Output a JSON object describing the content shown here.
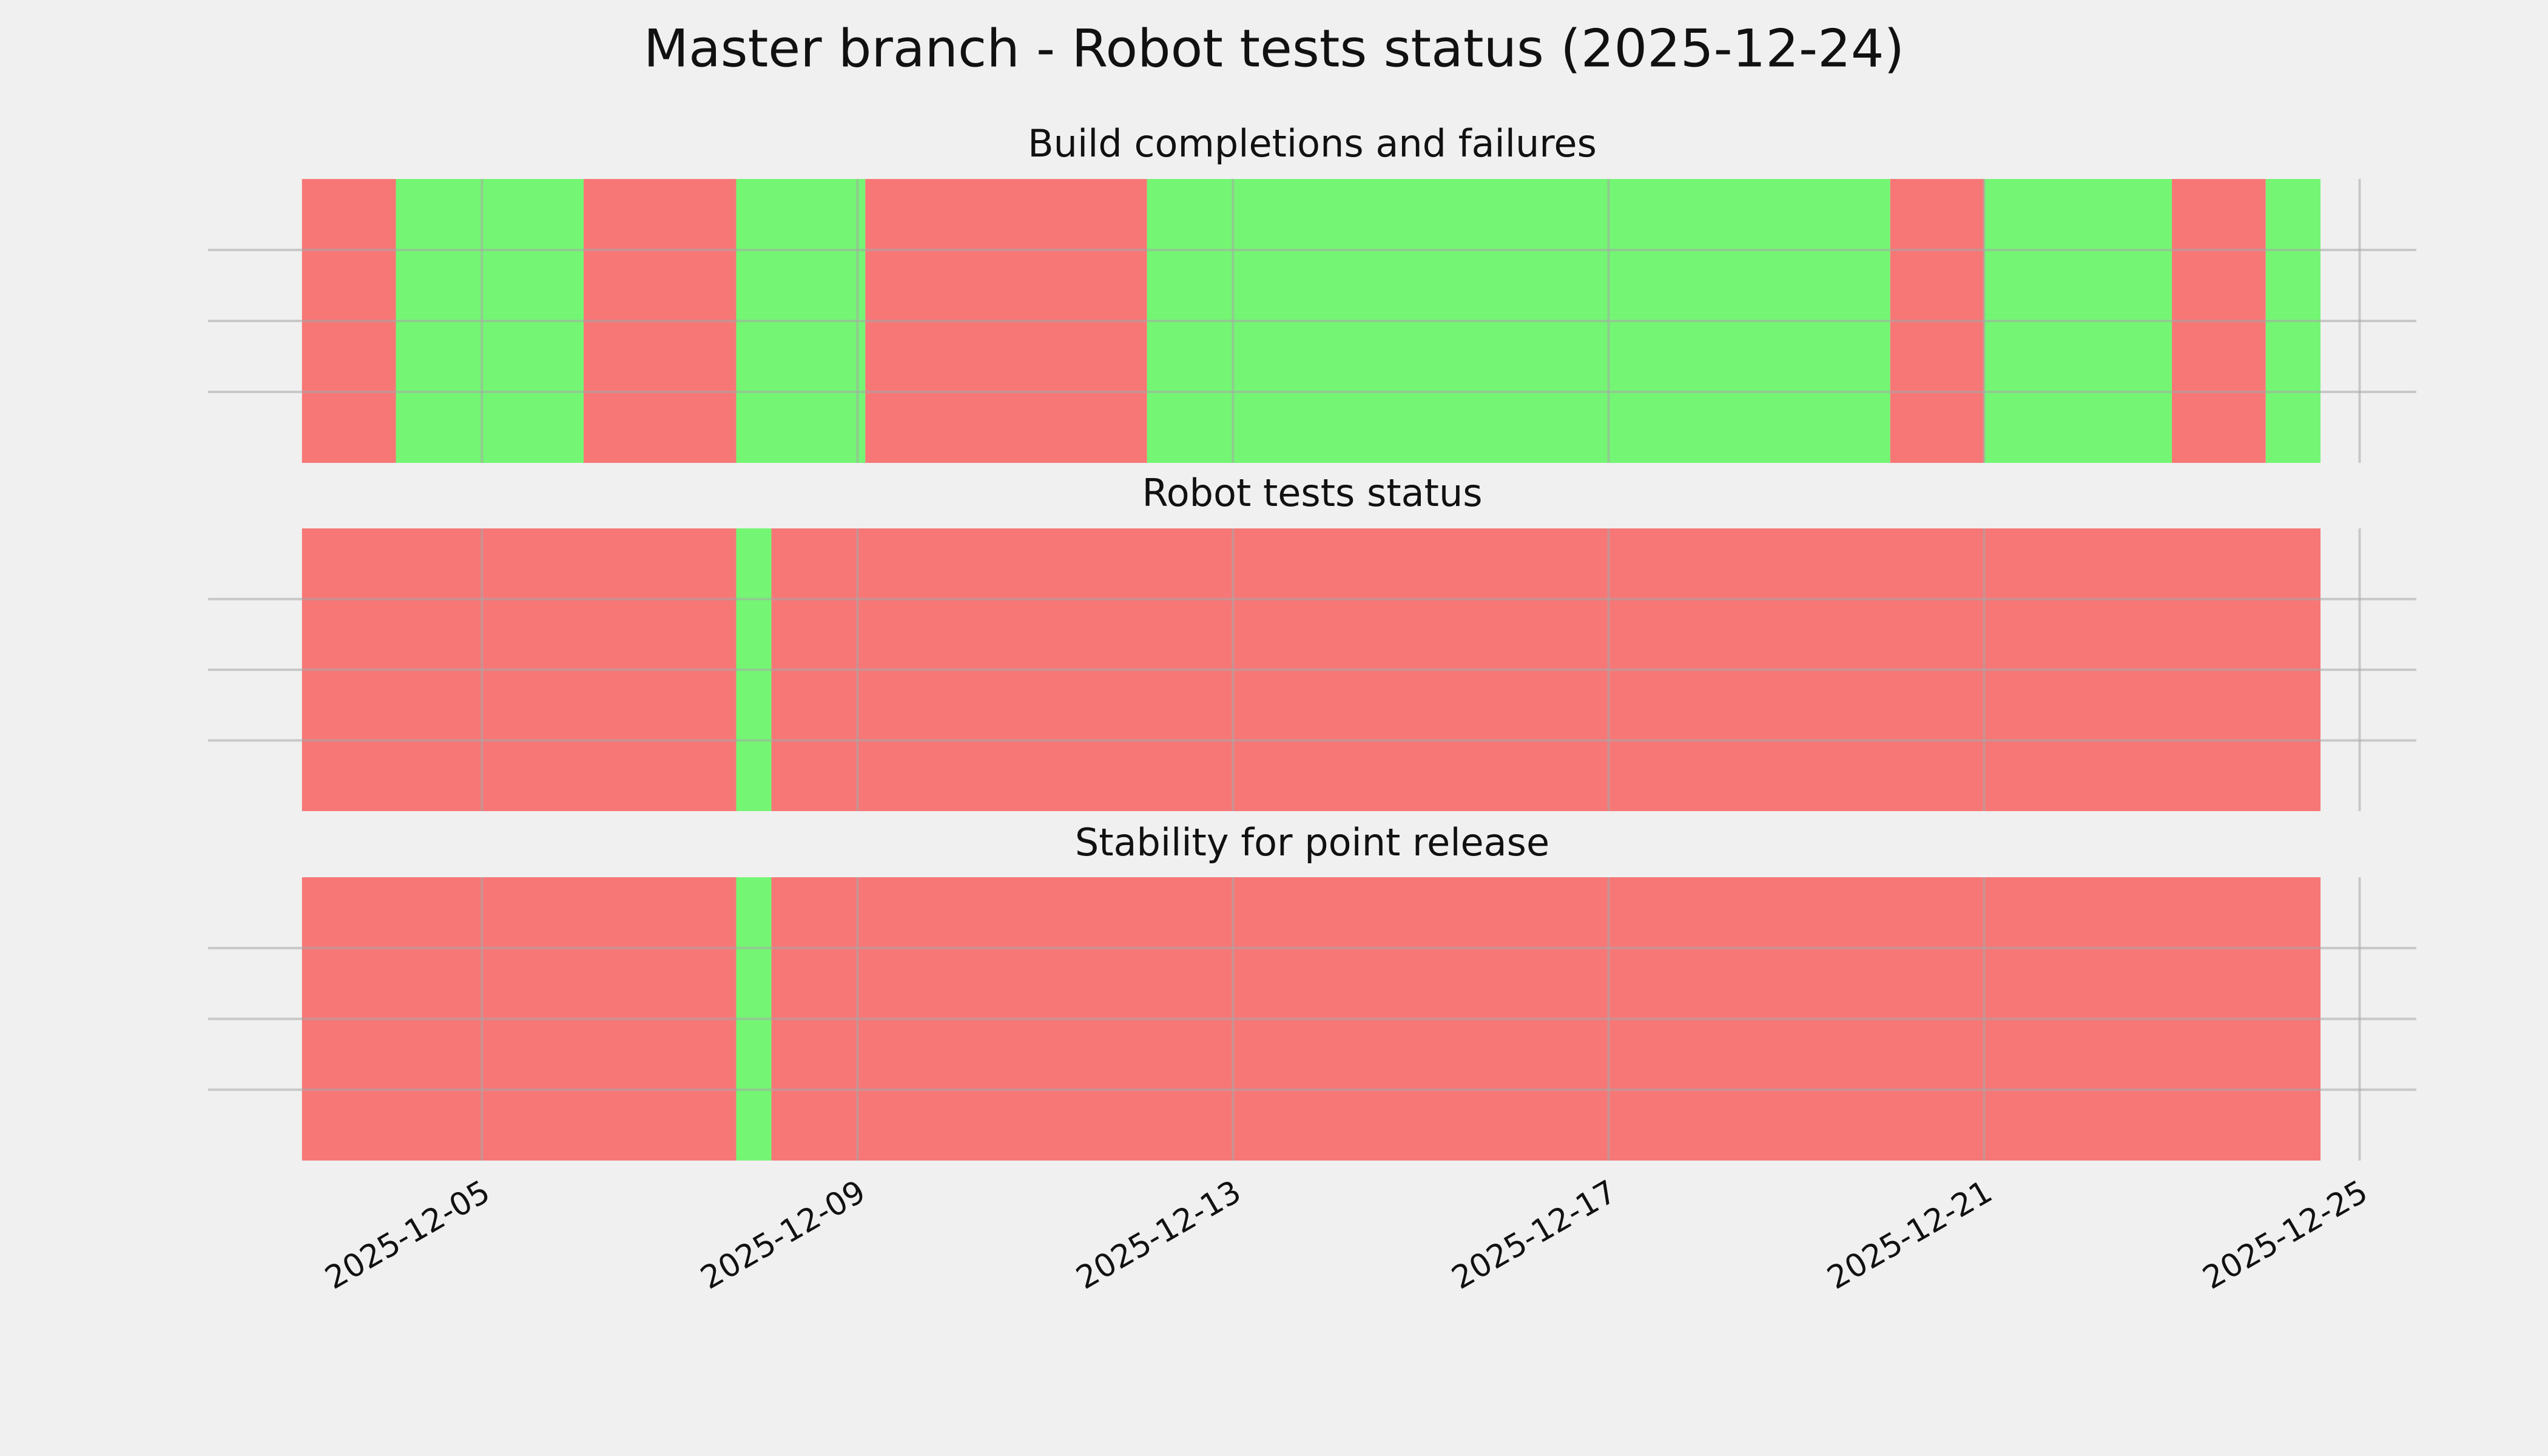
{
  "title": "Master branch - Robot tests status (2025-12-24)",
  "chart_data": [
    {
      "type": "timeline",
      "title": "Build completions and failures",
      "x": [
        "2025-12-03 02:00",
        "2025-12-04 02:00",
        "2025-12-06 02:00",
        "2025-12-07 17:00",
        "2025-12-09 02:00",
        "2025-12-12 02:00",
        "2025-12-20 00:00",
        "2025-12-21 00:00",
        "2025-12-23 00:00",
        "2025-12-24 00:00",
        "2025-12-24 14:00"
      ],
      "colors": [
        "#f77777",
        "#74f674",
        "#f77777",
        "#74f674",
        "#f77777",
        "#74f674",
        "#f77777",
        "#74f674",
        "#f77777",
        "#74f674"
      ],
      "xlim": [
        "2025-12-02 02:00",
        "2025-12-25 14:30"
      ],
      "xticks": [
        "2025-12-05",
        "2025-12-09",
        "2025-12-13",
        "2025-12-17",
        "2025-12-21",
        "2025-12-25"
      ],
      "grid": true,
      "show_xtick_labels": false
    },
    {
      "type": "timeline",
      "title": "Robot tests status",
      "x": [
        "2025-12-03 02:00",
        "2025-12-07 17:00",
        "2025-12-08 02:00",
        "2025-12-24 14:00"
      ],
      "colors": [
        "#f77777",
        "#74f674",
        "#f77777"
      ],
      "xlim": [
        "2025-12-02 02:00",
        "2025-12-25 14:30"
      ],
      "xticks": [
        "2025-12-05",
        "2025-12-09",
        "2025-12-13",
        "2025-12-17",
        "2025-12-21",
        "2025-12-25"
      ],
      "grid": true,
      "show_xtick_labels": false
    },
    {
      "type": "timeline",
      "title": "Stability for point release",
      "x": [
        "2025-12-03 02:00",
        "2025-12-07 17:00",
        "2025-12-08 02:00",
        "2025-12-24 14:00"
      ],
      "colors": [
        "#f77777",
        "#74f674",
        "#f77777"
      ],
      "xlim": [
        "2025-12-02 02:00",
        "2025-12-25 14:30"
      ],
      "xticks": [
        "2025-12-05",
        "2025-12-09",
        "2025-12-13",
        "2025-12-17",
        "2025-12-21",
        "2025-12-25"
      ],
      "grid": true,
      "show_xtick_labels": true
    }
  ]
}
